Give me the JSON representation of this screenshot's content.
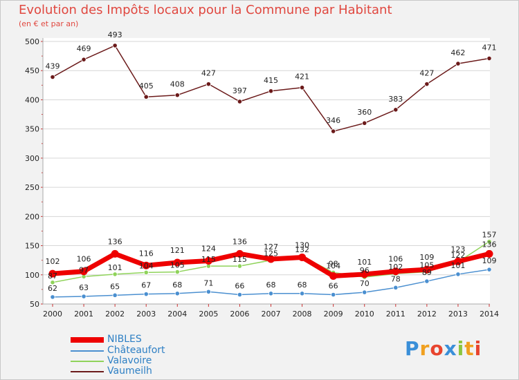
{
  "header": {
    "title": "Evolution des Impôts locaux pour la Commune par Habitant",
    "subtitle": "(en € et par an)"
  },
  "chart_data": {
    "type": "line",
    "title": "Evolution des Impôts locaux pour la Commune par Habitant",
    "ylabel": "(en € et par an)",
    "xlabel": "",
    "ylim": [
      50,
      500
    ],
    "grid": true,
    "x": [
      "2000",
      "2001",
      "2002",
      "2003",
      "2004",
      "2005",
      "2006",
      "2007",
      "2008",
      "2009",
      "2010",
      "2011",
      "2012",
      "2013",
      "2014"
    ],
    "yticks": [
      50,
      100,
      150,
      200,
      250,
      300,
      350,
      400,
      450,
      500
    ],
    "series": [
      {
        "name": "Vaumeilh",
        "color": "#6b1a1a",
        "values": [
          439,
          469,
          493,
          405,
          408,
          427,
          397,
          415,
          421,
          346,
          360,
          383,
          427,
          462,
          471
        ]
      },
      {
        "name": "Valavoire",
        "color": "#8fd35a",
        "values": [
          87,
          97,
          101,
          104,
          105,
          115,
          115,
          125,
          132,
          104,
          96,
          102,
          105,
          122,
          157
        ]
      },
      {
        "name": "Châteaufort",
        "color": "#4a8fd0",
        "values": [
          62,
          63,
          65,
          67,
          68,
          71,
          66,
          68,
          68,
          66,
          70,
          78,
          89,
          101,
          109
        ]
      },
      {
        "name": "NIBLES",
        "color": "#ee0000",
        "values": [
          102,
          106,
          136,
          116,
          121,
          124,
          136,
          127,
          130,
          98,
          101,
          106,
          109,
          123,
          136
        ]
      }
    ],
    "legend_position": "bottom-left"
  },
  "legend": {
    "items": [
      "NIBLES",
      "Châteaufort",
      "Valavoire",
      "Vaumeilh"
    ]
  },
  "logo": {
    "text": "Proxiti"
  }
}
